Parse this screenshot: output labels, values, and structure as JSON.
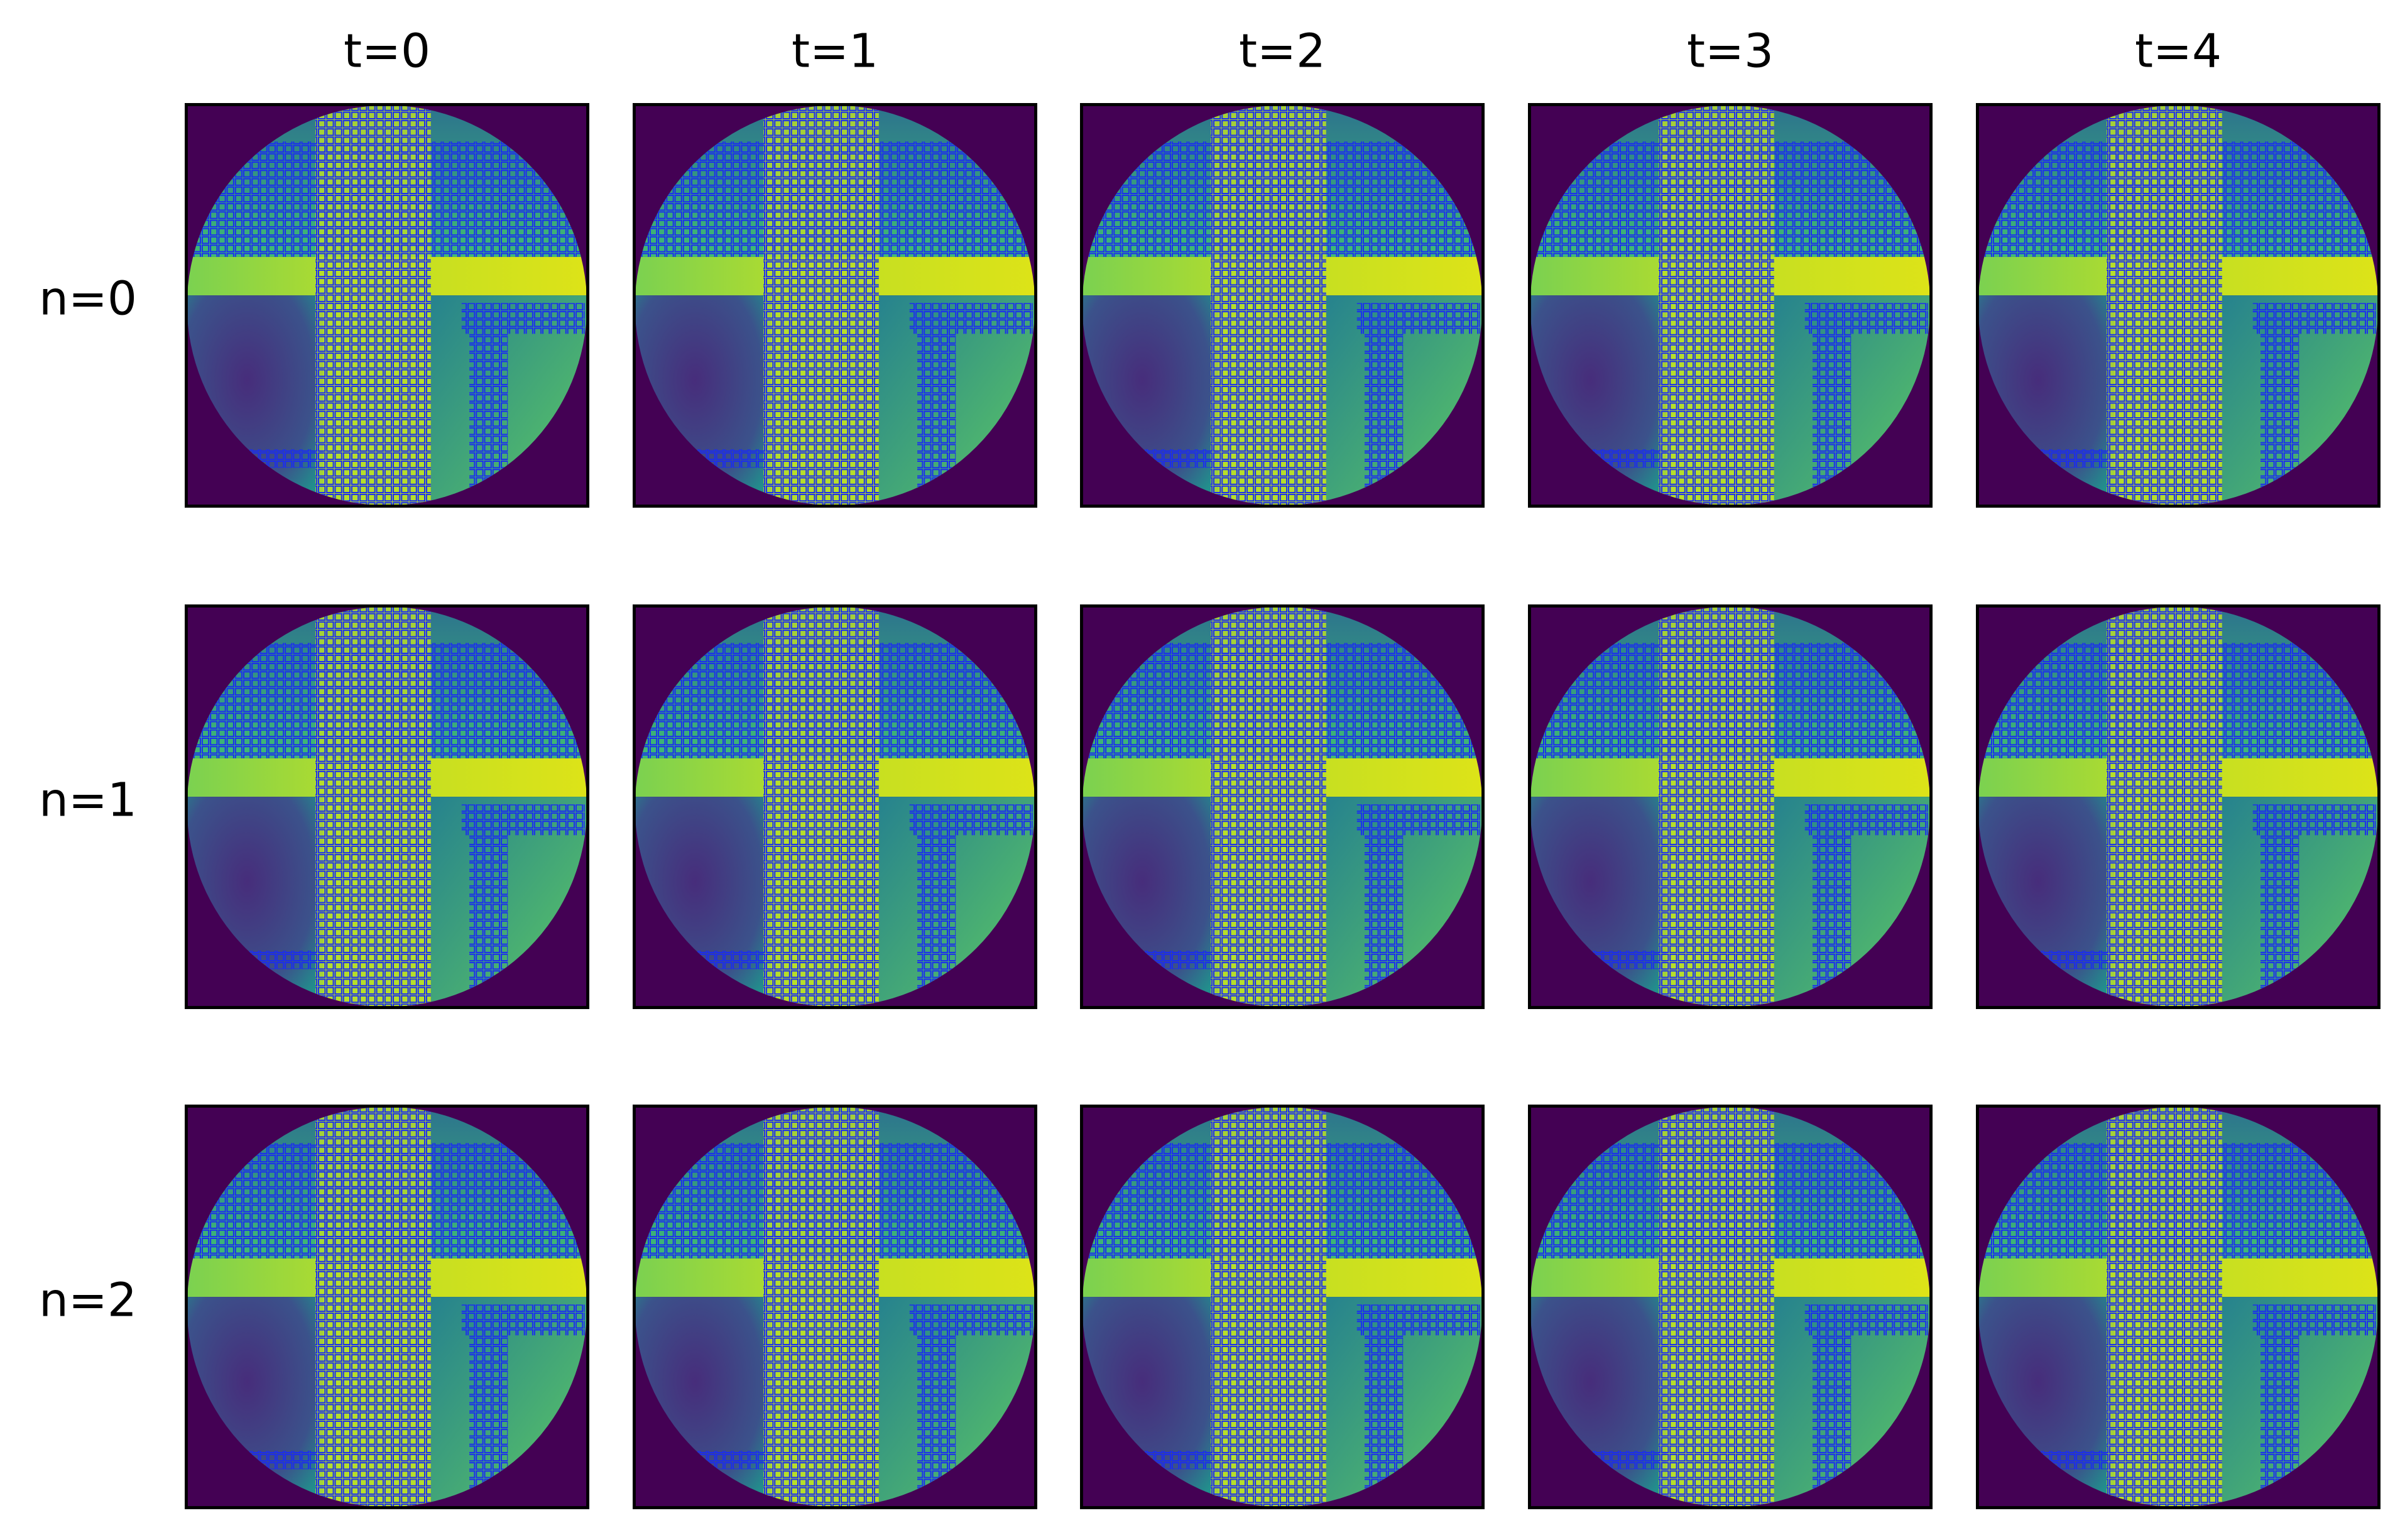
{
  "columns": [
    "t=0",
    "t=1",
    "t=2",
    "t=3",
    "t=4"
  ],
  "rows": [
    "n=0",
    "n=1",
    "n=2"
  ]
}
